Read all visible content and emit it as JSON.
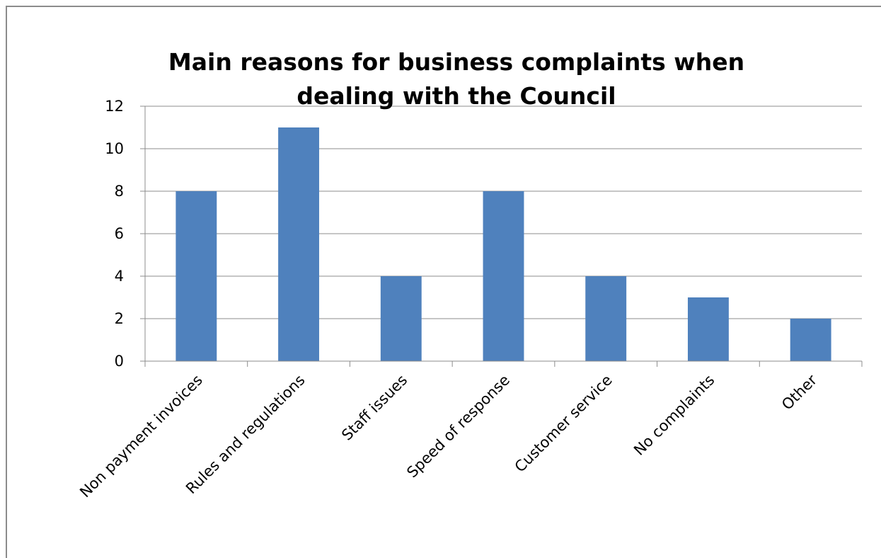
{
  "chart_data": {
    "type": "bar",
    "title_lines": [
      "Main reasons for business complaints when",
      "dealing with the Council"
    ],
    "categories": [
      "Non payment invoices",
      "Rules and regulations",
      "Staff issues",
      "Speed of response",
      "Customer service",
      "No complaints",
      "Other"
    ],
    "values": [
      8,
      11,
      4,
      8,
      4,
      3,
      2
    ],
    "ylim": [
      0,
      12
    ],
    "yticks": [
      "0",
      "2",
      "4",
      "6",
      "8",
      "10",
      "12"
    ],
    "xlabel": "",
    "ylabel": "",
    "grid": true,
    "legend": "none",
    "colors": {
      "bar": "#4f81bd",
      "grid": "#8c8c8c",
      "axis": "#8c8c8c",
      "border": "#8c8c8c"
    }
  }
}
